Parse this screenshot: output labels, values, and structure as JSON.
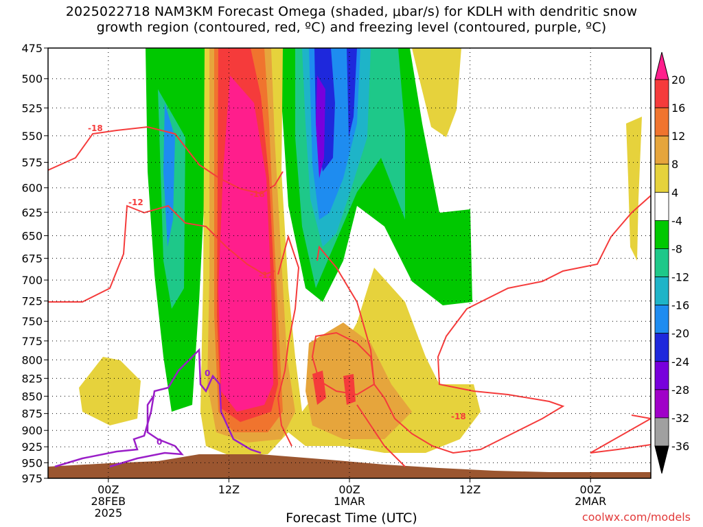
{
  "chart_data": {
    "type": "heatmap",
    "title_line1": "2025022718 NAM3KM Forecast Omega (shaded, μbar/s) for KDLH with dendritic snow",
    "title_line2": "growth region (contoured, red, ºC) and freezing level (contoured, purple, ºC)",
    "xlabel": "Forecast Time (UTC)",
    "ylabel": "",
    "y_scale": "pressure (hPa), inverted",
    "ylim": [
      975,
      475
    ],
    "y_ticks": [
      "475",
      "500",
      "525",
      "550",
      "575",
      "600",
      "625",
      "650",
      "675",
      "700",
      "725",
      "750",
      "775",
      "800",
      "825",
      "850",
      "875",
      "900",
      "925",
      "950",
      "975"
    ],
    "x_ticks": [
      {
        "label": [
          "00Z",
          "28FEB",
          "2025"
        ],
        "hours": 0
      },
      {
        "label": [
          "12Z"
        ],
        "hours": 12
      },
      {
        "label": [
          "00Z",
          "1MAR"
        ],
        "hours": 24
      },
      {
        "label": [
          "12Z"
        ],
        "hours": 36
      },
      {
        "label": [
          "00Z",
          "2MAR"
        ],
        "hours": 48
      }
    ],
    "xlim_hours": [
      -6,
      54
    ],
    "colorbar": {
      "labels": [
        "20",
        "16",
        "12",
        "8",
        "4",
        "-4",
        "-8",
        "-12",
        "-16",
        "-20",
        "-24",
        "-28",
        "-32",
        "-36"
      ],
      "colors": [
        "#ff1e8c",
        "#f53b3b",
        "#f0742e",
        "#e6a53c",
        "#e6d23c",
        "#ffffff",
        "#00c800",
        "#1ec889",
        "#1eb4c8",
        "#1e8cf0",
        "#1e28dc",
        "#7800dc",
        "#a000c8",
        "#a0a0a0",
        "#000000"
      ]
    },
    "shaded_regions": [
      {
        "level": ">20",
        "desc": "strong rising air core",
        "x_range_hours": [
          9.5,
          16.5
        ],
        "p_range": [
          475,
          890
        ]
      },
      {
        "level": "4 to 16",
        "desc": "lower mid-level ascent",
        "x_range_hours": [
          20,
          30
        ],
        "p_range": [
          690,
          935
        ]
      },
      {
        "level": "-8 to -28",
        "desc": "sinking air aloft",
        "x_range_hours": [
          17,
          33
        ],
        "p_range": [
          475,
          730
        ]
      }
    ],
    "contours": [
      {
        "name": "dendritic growth region",
        "color": "#f53b3b",
        "labels": [
          "-18",
          "-12",
          "-18",
          "-12",
          "-18"
        ]
      },
      {
        "name": "freezing level",
        "color": "#9a1ec8",
        "labels": [
          "0",
          "0"
        ]
      }
    ],
    "terrain_color": "#9b5630"
  },
  "watermark": "coolwx.com/models"
}
